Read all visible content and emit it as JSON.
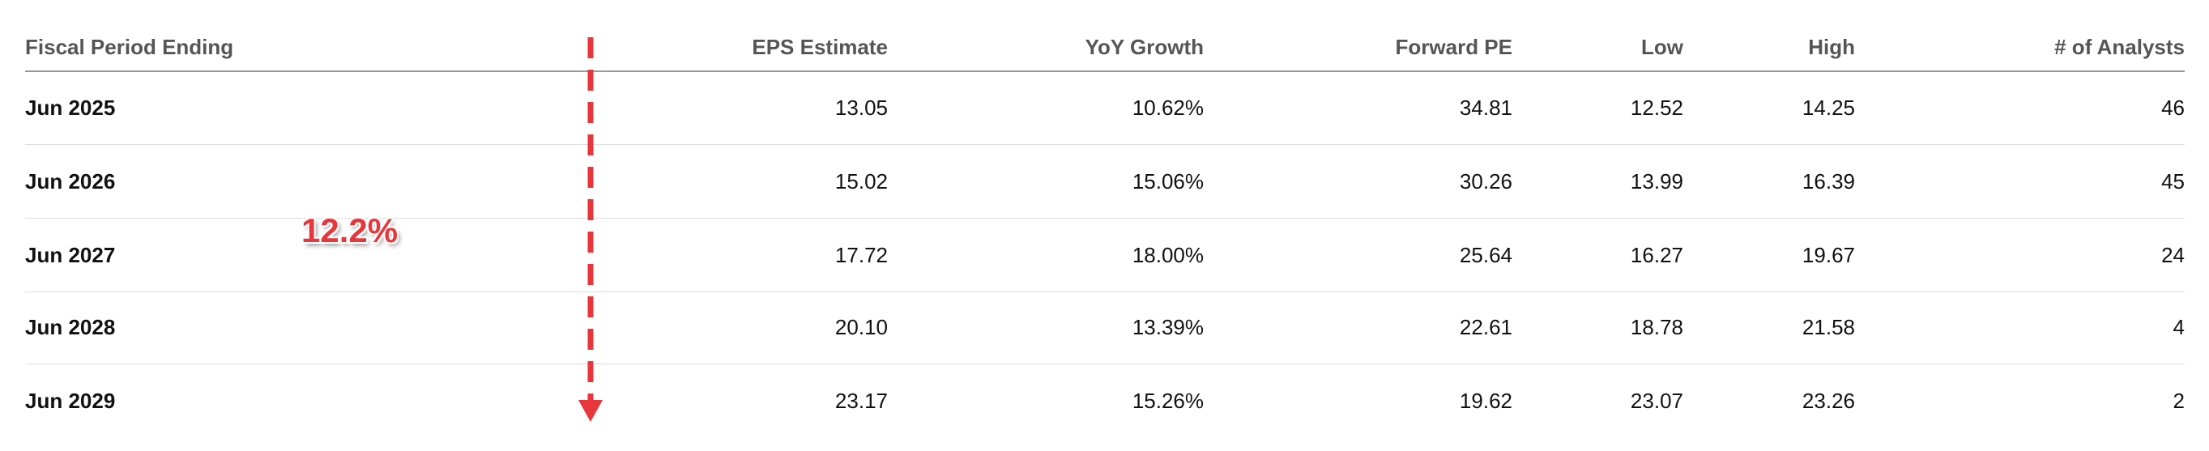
{
  "table": {
    "headers": [
      "Fiscal Period Ending",
      "EPS Estimate",
      "YoY Growth",
      "Forward PE",
      "Low",
      "High",
      "# of Analysts"
    ],
    "rows": [
      [
        "Jun 2025",
        "13.05",
        "10.62%",
        "34.81",
        "12.52",
        "14.25",
        "46"
      ],
      [
        "Jun 2026",
        "15.02",
        "15.06%",
        "30.26",
        "13.99",
        "16.39",
        "45"
      ],
      [
        "Jun 2027",
        "17.72",
        "18.00%",
        "25.64",
        "16.27",
        "19.67",
        "24"
      ],
      [
        "Jun 2028",
        "20.10",
        "13.39%",
        "22.61",
        "18.78",
        "21.58",
        "4"
      ],
      [
        "Jun 2029",
        "23.17",
        "15.26%",
        "19.62",
        "23.07",
        "23.26",
        "2"
      ]
    ]
  },
  "annotation": {
    "label": "12.2%"
  }
}
